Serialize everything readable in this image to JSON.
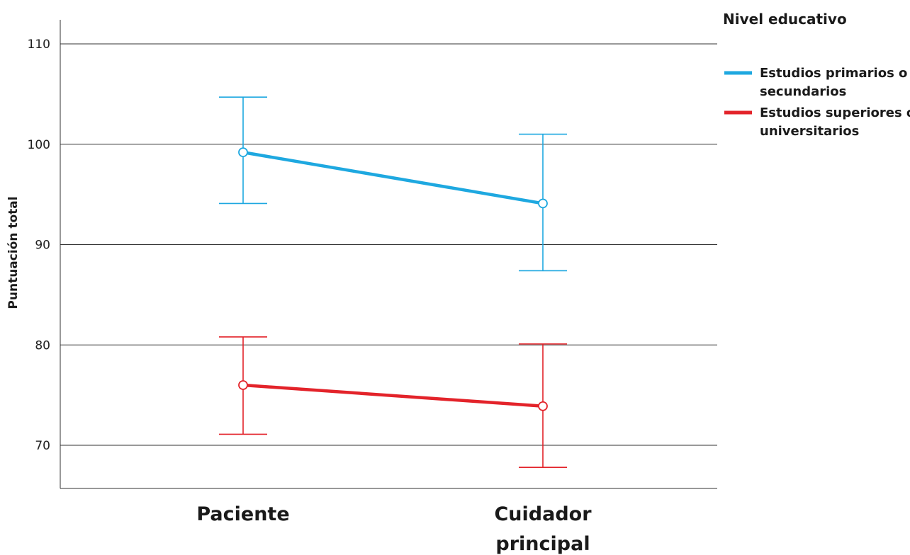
{
  "chart_data": {
    "type": "line",
    "ylabel": "Puntuación total",
    "xlabel": "",
    "categories": [
      "Paciente",
      "Cuidador principal"
    ],
    "category_lines": [
      [
        "Paciente"
      ],
      [
        "Cuidador",
        "principal"
      ]
    ],
    "yticks": [
      70,
      80,
      90,
      100,
      110
    ],
    "ylim": [
      65.7,
      112.4
    ],
    "grid": true,
    "legend": {
      "title": "Nivel educativo",
      "placement": "top-right",
      "entries": [
        {
          "lines": [
            "Estudios primarios o",
            "secundarios"
          ],
          "color": "#1ea8e0"
        },
        {
          "lines": [
            "Estudios superiores o",
            "universitarios"
          ],
          "color": "#e3232a"
        }
      ]
    },
    "series": [
      {
        "name": "Estudios primarios o secundarios",
        "color": "#1ea8e0",
        "values": [
          99.2,
          94.1
        ],
        "lower": [
          94.1,
          87.4
        ],
        "upper": [
          104.7,
          101.0
        ]
      },
      {
        "name": "Estudios superiores o universitarios",
        "color": "#e3232a",
        "values": [
          76.0,
          73.9
        ],
        "lower": [
          71.1,
          67.8
        ],
        "upper": [
          80.8,
          80.1
        ]
      }
    ]
  }
}
